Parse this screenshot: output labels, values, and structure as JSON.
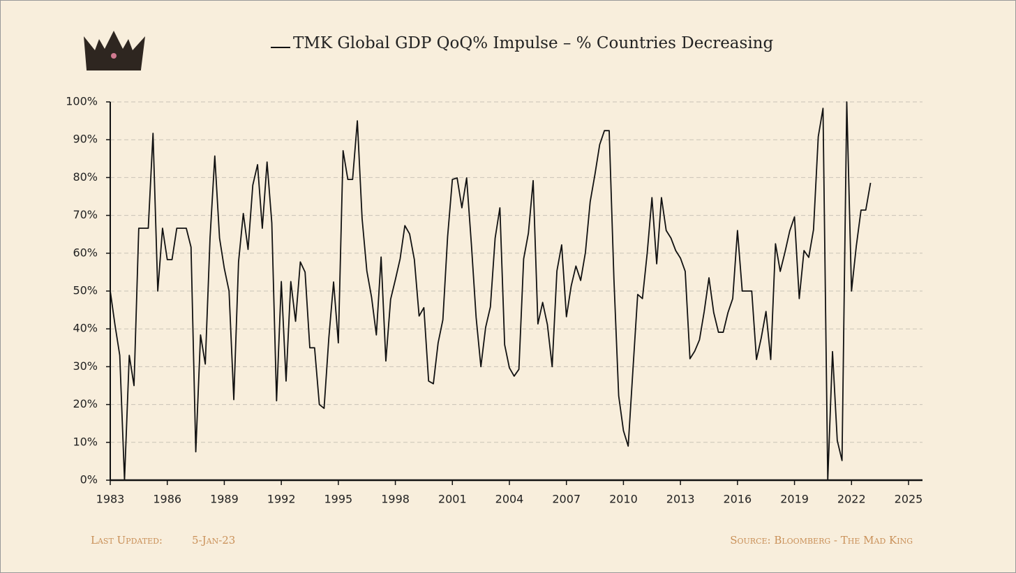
{
  "chart_data": {
    "type": "line",
    "x": [
      1983,
      1983.25,
      1983.5,
      1983.75,
      1984,
      1984.25,
      1984.5,
      1984.75,
      1985,
      1985.25,
      1985.5,
      1985.75,
      1986,
      1986.25,
      1986.5,
      1986.75,
      1987,
      1987.25,
      1987.5,
      1987.75,
      1988,
      1988.25,
      1988.5,
      1988.75,
      1989,
      1989.25,
      1989.5,
      1989.75,
      1990,
      1990.25,
      1990.5,
      1990.75,
      1991,
      1991.25,
      1991.5,
      1991.75,
      1992,
      1992.25,
      1992.5,
      1992.75,
      1993,
      1993.25,
      1993.5,
      1993.75,
      1994,
      1994.25,
      1994.5,
      1994.75,
      1995,
      1995.25,
      1995.5,
      1995.75,
      1996,
      1996.25,
      1996.5,
      1996.75,
      1997,
      1997.25,
      1997.5,
      1997.75,
      1998,
      1998.25,
      1998.5,
      1998.75,
      1999,
      1999.25,
      1999.5,
      1999.75,
      2000,
      2000.25,
      2000.5,
      2000.75,
      2001,
      2001.25,
      2001.5,
      2001.75,
      2002,
      2002.25,
      2002.5,
      2002.75,
      2003,
      2003.25,
      2003.5,
      2003.75,
      2004,
      2004.25,
      2004.5,
      2004.75,
      2005,
      2005.25,
      2005.5,
      2005.75,
      2006,
      2006.25,
      2006.5,
      2006.75,
      2007,
      2007.25,
      2007.5,
      2007.75,
      2008,
      2008.25,
      2008.5,
      2008.75,
      2009,
      2009.25,
      2009.5,
      2009.75,
      2010,
      2010.25,
      2010.5,
      2010.75,
      2011,
      2011.25,
      2011.5,
      2011.75,
      2012,
      2012.25,
      2012.5,
      2012.75,
      2013,
      2013.25,
      2013.5,
      2013.75,
      2014,
      2014.25,
      2014.5,
      2014.75,
      2015,
      2015.25,
      2015.5,
      2015.75,
      2016,
      2016.25,
      2016.5,
      2016.75,
      2017,
      2017.25,
      2017.5,
      2017.75,
      2018,
      2018.25,
      2018.5,
      2018.75,
      2019,
      2019.25,
      2019.5,
      2019.75,
      2020,
      2020.25,
      2020.5,
      2020.75,
      2021,
      2021.25,
      2021.5,
      2021.75,
      2022,
      2022.25,
      2022.5,
      2022.75,
      2023
    ],
    "series": [
      {
        "name": "TMK Global GDP QoQ% Impulse – % Countries Decreasing",
        "color": "#111111",
        "values": [
          50,
          41,
          33,
          0,
          33,
          25,
          66.6,
          66.6,
          66.6,
          91.7,
          50,
          66.6,
          58.3,
          58.3,
          66.6,
          66.6,
          66.6,
          61.6,
          7.5,
          38.4,
          30.7,
          64,
          85.7,
          64,
          56,
          50,
          21.3,
          57.7,
          70.5,
          61,
          78,
          83.4,
          66.6,
          84.1,
          68,
          21,
          52.5,
          26.2,
          52.5,
          42,
          57.7,
          55,
          35,
          35,
          20,
          19,
          37.6,
          52.4,
          36.3,
          87.1,
          79.5,
          79.5,
          95,
          69.2,
          55.3,
          48.3,
          38.4,
          59,
          31.5,
          47.8,
          53,
          58.5,
          67.3,
          65.1,
          58.3,
          43.4,
          45.6,
          26.2,
          25.5,
          36.3,
          42.4,
          64.4,
          79.5,
          79.9,
          72,
          79.9,
          62.4,
          43,
          30,
          40.4,
          45.8,
          64,
          72,
          35.8,
          29.7,
          27.5,
          29.3,
          58.5,
          65.3,
          79.2,
          41.3,
          47,
          41.1,
          30,
          55.3,
          62.2,
          43.2,
          51.3,
          56.6,
          52.8,
          60.2,
          73.6,
          80.8,
          88.7,
          92.4,
          92.4,
          53.1,
          22.3,
          13.1,
          9,
          29.2,
          49.1,
          48,
          60,
          74.7,
          57.2,
          74.7,
          66,
          64,
          60.7,
          58.7,
          55.2,
          32.1,
          34.1,
          37.1,
          44.6,
          53.5,
          44.3,
          39.1,
          39.1,
          44.3,
          48,
          66,
          50,
          50,
          50,
          31.9,
          37.6,
          44.6,
          31.9,
          62.5,
          55.2,
          60.3,
          65.9,
          69.6,
          48,
          60.7,
          58.9,
          66.2,
          90.8,
          98.3,
          0,
          34,
          10.5,
          5.2,
          100,
          50,
          61.8,
          71.4,
          71.4,
          78.6
        ]
      }
    ],
    "xlim": [
      1983,
      2025
    ],
    "xticks": [
      1983,
      1986,
      1989,
      1992,
      1995,
      1998,
      2001,
      2004,
      2007,
      2010,
      2013,
      2016,
      2019,
      2022,
      2025
    ],
    "ylim": [
      0,
      100
    ],
    "yticks": [
      {
        "value": 0,
        "label": "0%"
      },
      {
        "value": 10,
        "label": "10%"
      },
      {
        "value": 20,
        "label": "20%"
      },
      {
        "value": 30,
        "label": "30%"
      },
      {
        "value": 40,
        "label": "40%"
      },
      {
        "value": 50,
        "label": "50%"
      },
      {
        "value": 60,
        "label": "60%"
      },
      {
        "value": 70,
        "label": "70%"
      },
      {
        "value": 80,
        "label": "80%"
      },
      {
        "value": 90,
        "label": "90%"
      },
      {
        "value": 100,
        "label": "100%"
      }
    ],
    "grid": true,
    "footer": {
      "updated_label": "Last Updated:",
      "updated": "5-Jan-23",
      "source": "Source: Bloomberg - The Mad King"
    }
  }
}
